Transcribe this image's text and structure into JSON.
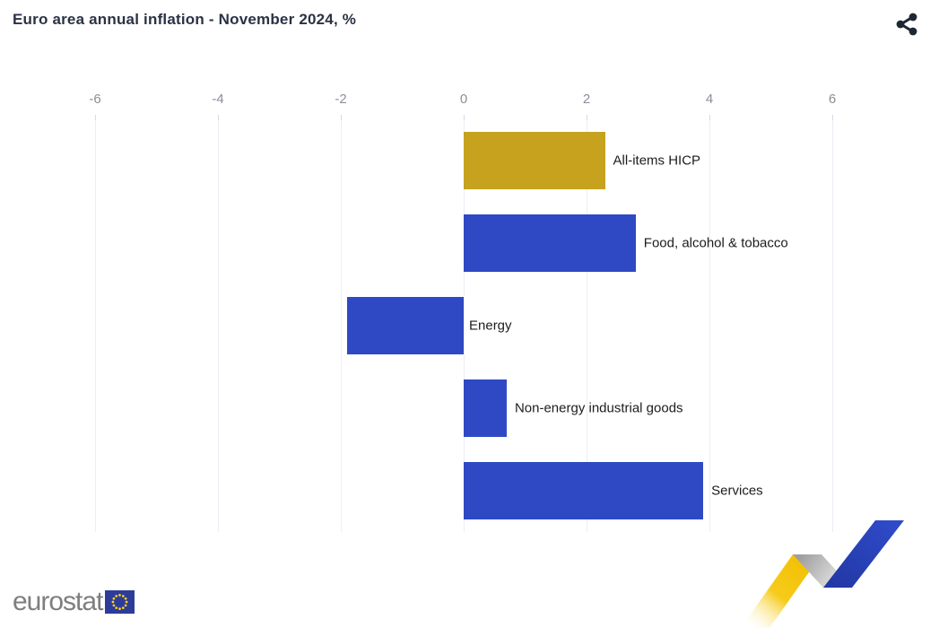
{
  "header": {
    "title": "Euro area annual inflation - November 2024, %",
    "share_icon": "share-icon"
  },
  "chart_data": {
    "type": "bar",
    "orientation": "horizontal",
    "title": "Euro area annual inflation - November 2024, %",
    "categories": [
      "All-items HICP",
      "Food, alcohol & tobacco",
      "Energy",
      "Non-energy industrial goods",
      "Services"
    ],
    "values": [
      2.3,
      2.8,
      -1.9,
      0.7,
      3.9
    ],
    "bar_colors": [
      "#c6a21f",
      "#2e49c3",
      "#2e49c3",
      "#2e49c3",
      "#2e49c3"
    ],
    "xticks": [
      -6,
      -4,
      -2,
      0,
      2,
      4,
      6
    ],
    "xlim": [
      -7,
      7
    ],
    "xlabel": "",
    "ylabel": "",
    "grid": "vertical-light",
    "legend": "none",
    "category_label_position": "outside-end-of-bar"
  },
  "colors": {
    "title_text": "#2b3245",
    "axis_text": "#8a8f9b",
    "grid_line": "#eceef5",
    "tick_mark": "#d7dae4",
    "bar_gold": "#c6a21f",
    "bar_blue": "#2e49c3",
    "category_text": "#1c1c1c",
    "share_icon": "#1f2733",
    "logo_text": "#7e7e7e",
    "flag_blue": "#2e3c99",
    "flag_stars": "#ffd617",
    "ribbon_yellow": "#f3c300",
    "ribbon_gray": "#b8b8b8",
    "ribbon_blue": "#2a43bd"
  },
  "footer": {
    "logo_text": "eurostat"
  }
}
